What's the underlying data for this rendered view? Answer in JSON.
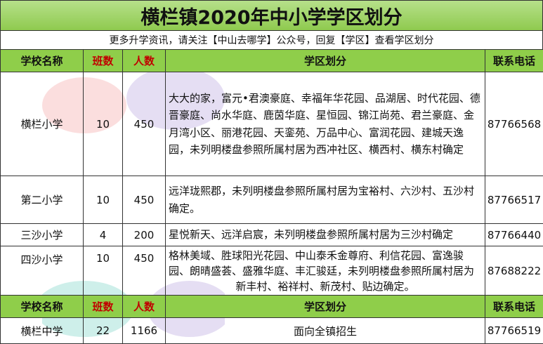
{
  "title": "横栏镇2020年中小学学区划分",
  "subtitle": "更多升学资讯，请关注【中山去哪学】公众号，回复【学区】查看学区划分",
  "headers": {
    "school": "学校名称",
    "classes": "班数",
    "students": "人数",
    "district": "学区划分",
    "phone": "联系电话"
  },
  "primary": [
    {
      "school": "横栏小学",
      "classes": "10",
      "students": "450",
      "district": "大大的家，富元•君澳豪庭、幸福年华花园、品湖居、时代花园、德晋豪庭、尚水华庭、鹿茵华庭、星恒园、锦江尚苑、君兰豪庭、金月湾小区、丽港花园、天銮苑、万品中心、富润花园、建城天逸园，未列明楼盘参照所属村居为西冲社区、横西村、横东村确定",
      "phone": "87766568"
    },
    {
      "school": "第二小学",
      "classes": "10",
      "students": "450",
      "district": "远洋珑熙郡，未列明楼盘参照所属村居为宝裕村、六沙村、五沙村确定。",
      "phone": "87766517"
    },
    {
      "school": "三沙小学",
      "classes": "4",
      "students": "200",
      "district": "星悦新天、远洋启宸，未列明楼盘参照所属村居为三沙村确定",
      "phone": "87766440"
    },
    {
      "school": "四沙小学",
      "classes": "10",
      "students": "450",
      "district": "格林美域、胜球阳光花园、中山泰禾金尊府、利信花园、富逸骏园、朗晴盛荟、盛雅华庭、丰汇骏廷，未列明楼盘参照所属村居为新丰村、裕祥村、新茂村、贴边确定。",
      "phone": "87688222"
    }
  ],
  "secondary": [
    {
      "school": "横栏中学",
      "classes": "22",
      "students": "1166",
      "district": "面向全镇招生",
      "phone": "87766519"
    }
  ],
  "colors": {
    "header_green": "#8fce4a",
    "accent_red": "#c00000"
  }
}
